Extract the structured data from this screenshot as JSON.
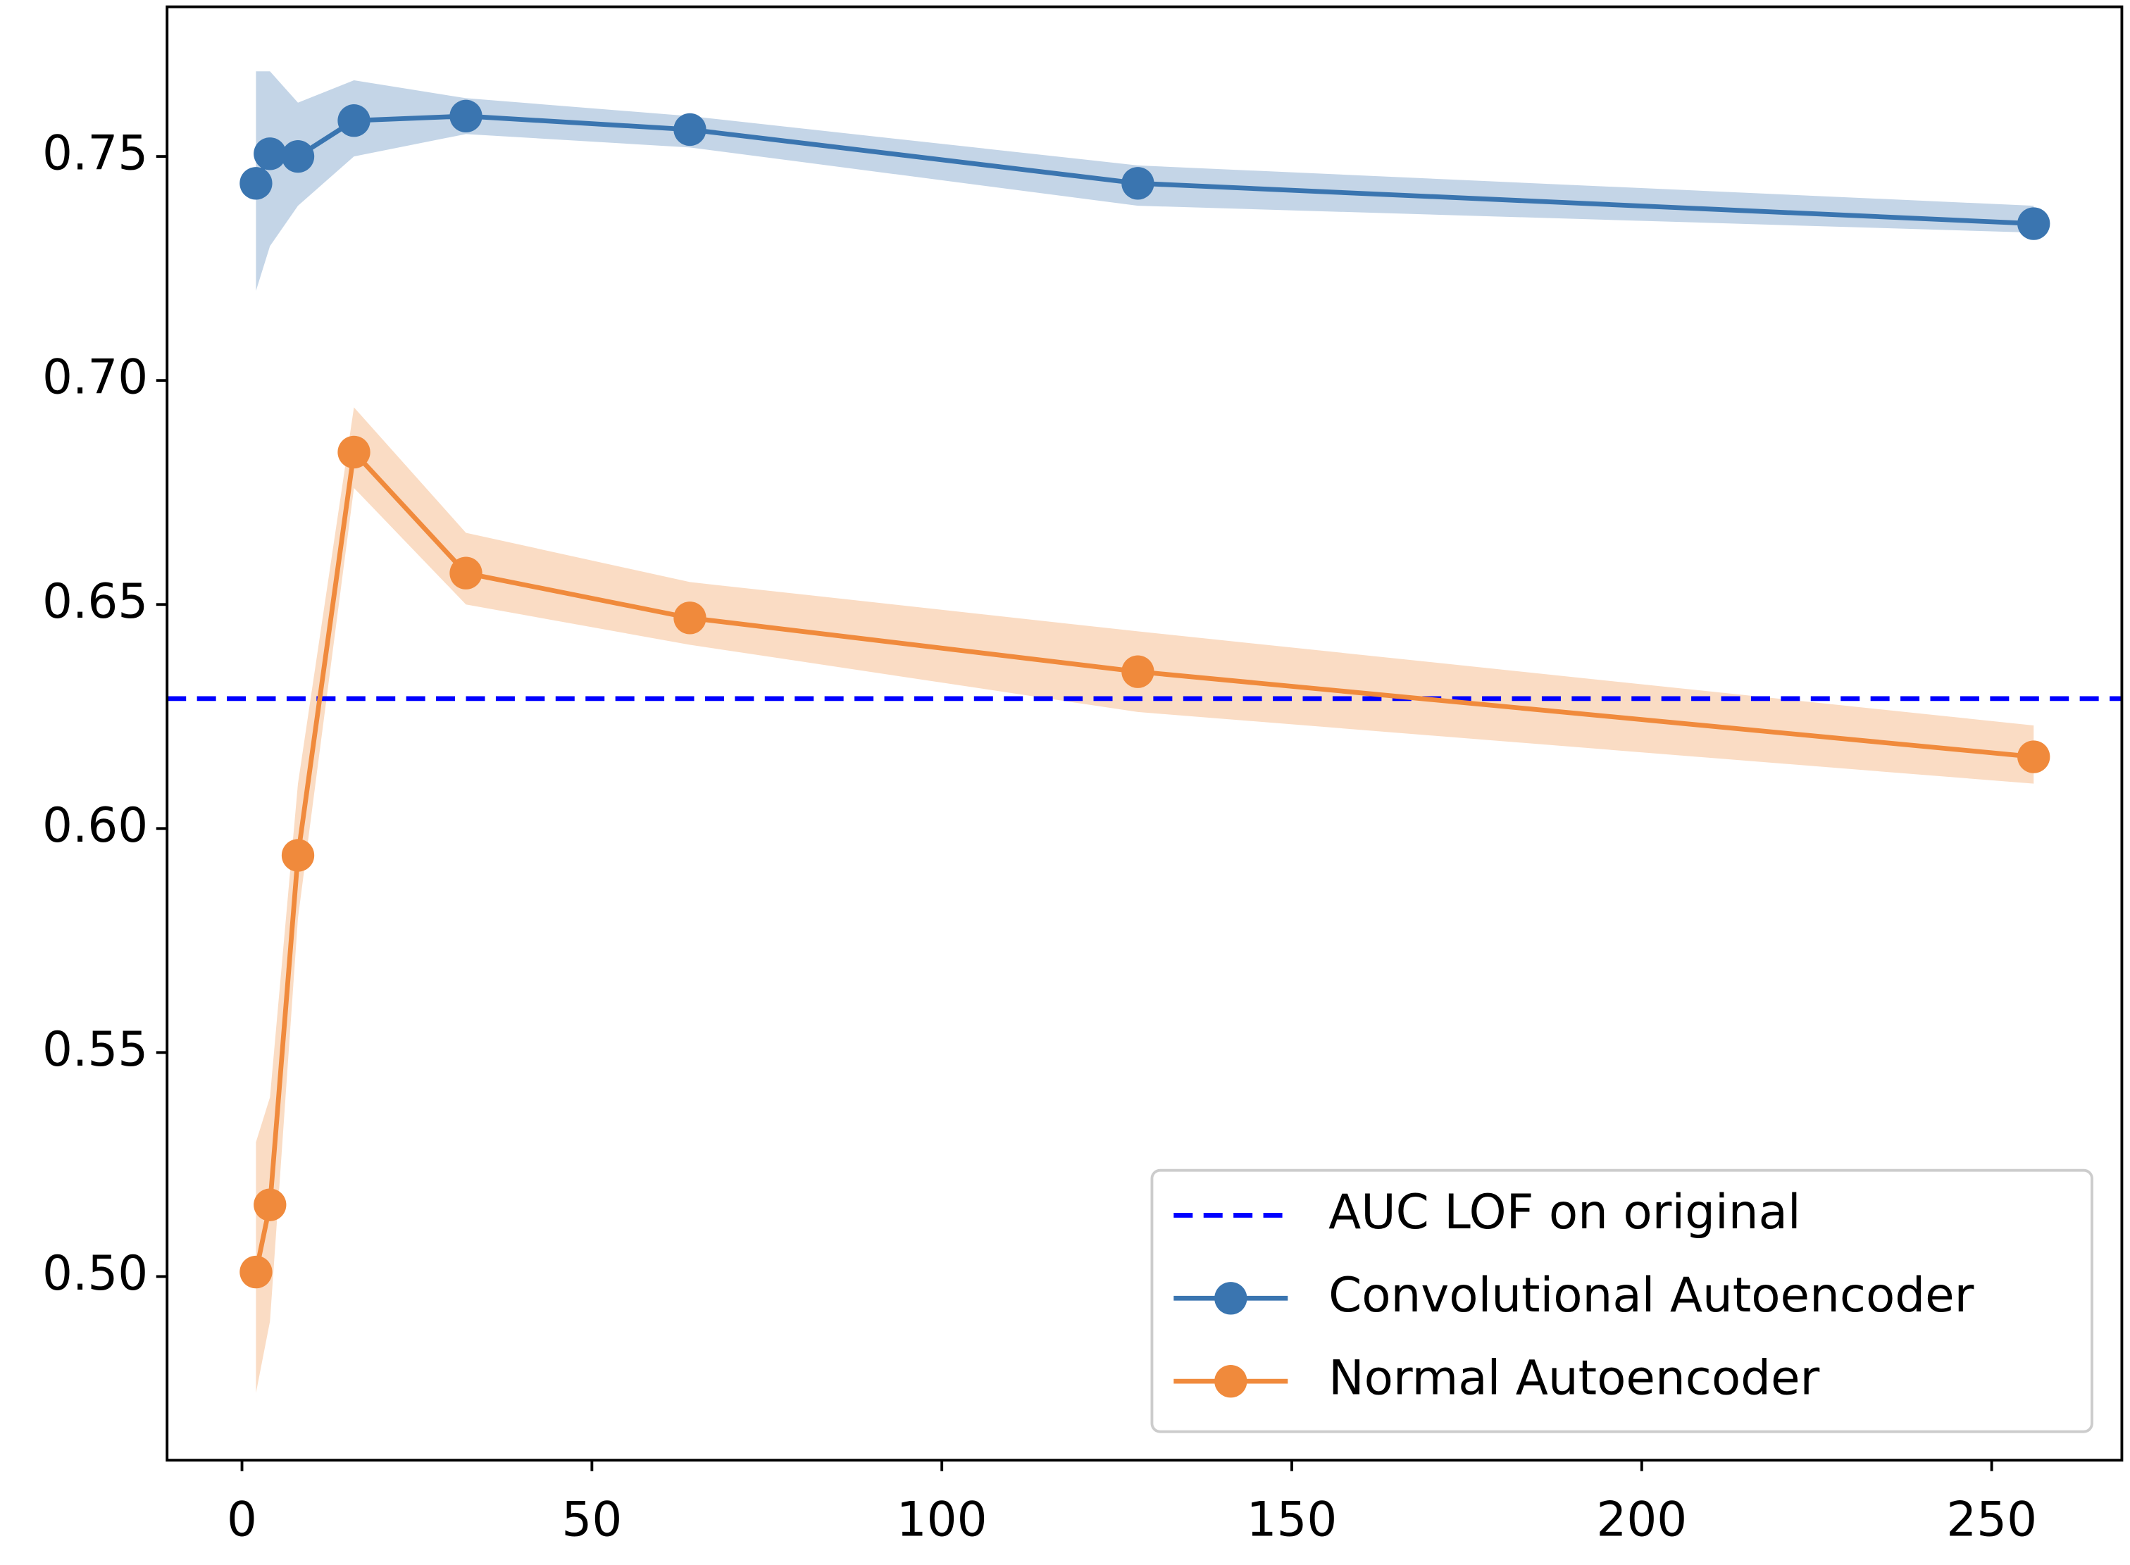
{
  "chart_data": {
    "type": "line",
    "x": [
      2,
      4,
      8,
      16,
      32,
      64,
      128,
      256
    ],
    "xlim": [
      -10.7,
      268.6
    ],
    "xticks": [
      0,
      50,
      100,
      150,
      200,
      250
    ],
    "ylim": [
      0.459,
      0.7834
    ],
    "yticks": [
      {
        "value": 0.5,
        "label": "0.50"
      },
      {
        "value": 0.55,
        "label": "0.55"
      },
      {
        "value": 0.6,
        "label": "0.60"
      },
      {
        "value": 0.65,
        "label": "0.65"
      },
      {
        "value": 0.7,
        "label": "0.70"
      },
      {
        "value": 0.75,
        "label": "0.75"
      }
    ],
    "reference_line": {
      "name": "AUC LOF on original",
      "value": 0.629,
      "color": "#0000ff",
      "dashed": true
    },
    "series": [
      {
        "name": "Convolutional Autoencoder",
        "color": "#3a75b0",
        "values": [
          0.744,
          0.7506,
          0.75,
          0.758,
          0.759,
          0.756,
          0.744,
          0.735
        ],
        "lower": [
          0.72,
          0.73,
          0.739,
          0.75,
          0.755,
          0.752,
          0.739,
          0.733
        ],
        "upper": [
          0.769,
          0.769,
          0.762,
          0.767,
          0.763,
          0.759,
          0.748,
          0.739
        ]
      },
      {
        "name": "Normal Autoencoder",
        "color": "#f08a3c",
        "values": [
          0.501,
          0.516,
          0.594,
          0.684,
          0.657,
          0.647,
          0.635,
          0.616
        ],
        "lower": [
          0.474,
          0.49,
          0.58,
          0.676,
          0.65,
          0.641,
          0.626,
          0.61
        ],
        "upper": [
          0.53,
          0.54,
          0.61,
          0.694,
          0.666,
          0.655,
          0.644,
          0.623
        ]
      }
    ],
    "legend": "lower right"
  }
}
